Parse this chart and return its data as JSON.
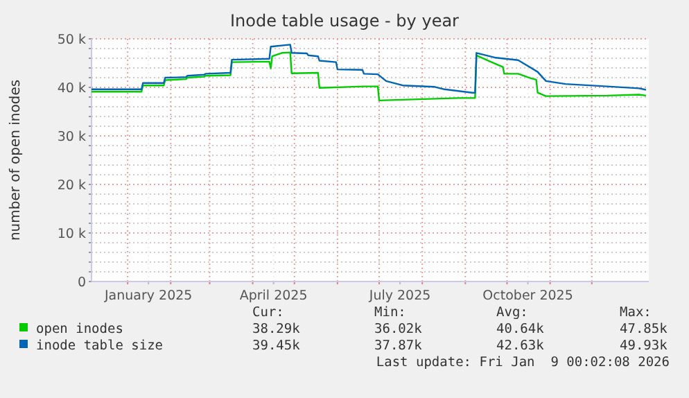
{
  "chart_data": {
    "type": "line",
    "title": "Inode table usage - by year",
    "ylabel": "number of open inodes",
    "xlim": [
      "2024-12-06",
      "2026-01-11"
    ],
    "xticks": [
      {
        "value": "2025-01-01",
        "label": null
      },
      {
        "value": "2025-01-16",
        "label": "January 2025"
      },
      {
        "value": "2025-02-01",
        "label": null
      },
      {
        "value": "2025-03-01",
        "label": null
      },
      {
        "value": "2025-04-01",
        "label": null
      },
      {
        "value": "2025-04-16",
        "label": "April 2025"
      },
      {
        "value": "2025-05-01",
        "label": null
      },
      {
        "value": "2025-06-01",
        "label": null
      },
      {
        "value": "2025-07-01",
        "label": null
      },
      {
        "value": "2025-07-16",
        "label": "July 2025"
      },
      {
        "value": "2025-08-01",
        "label": null
      },
      {
        "value": "2025-09-01",
        "label": null
      },
      {
        "value": "2025-10-01",
        "label": null
      },
      {
        "value": "2025-10-16",
        "label": "October 2025"
      },
      {
        "value": "2025-11-01",
        "label": null
      },
      {
        "value": "2025-12-01",
        "label": null
      }
    ],
    "ylim": [
      0,
      50000
    ],
    "yticks": [
      0,
      {
        "value": 2000,
        "label": null
      },
      {
        "value": 4000,
        "label": null
      },
      {
        "value": 6000,
        "label": null
      },
      {
        "value": 8000,
        "label": null
      },
      {
        "value": 10000,
        "label": "10 k"
      },
      {
        "value": 12000,
        "label": null
      },
      {
        "value": 14000,
        "label": null
      },
      {
        "value": 16000,
        "label": null
      },
      {
        "value": 18000,
        "label": null
      },
      {
        "value": 20000,
        "label": "20 k"
      },
      {
        "value": 22000,
        "label": null
      },
      {
        "value": 24000,
        "label": null
      },
      {
        "value": 26000,
        "label": null
      },
      {
        "value": 28000,
        "label": null
      },
      {
        "value": 30000,
        "label": "30 k"
      },
      {
        "value": 32000,
        "label": null
      },
      {
        "value": 34000,
        "label": null
      },
      {
        "value": 36000,
        "label": null
      },
      {
        "value": 38000,
        "label": null
      },
      {
        "value": 40000,
        "label": "40 k"
      },
      {
        "value": 42000,
        "label": null
      },
      {
        "value": 44000,
        "label": null
      },
      {
        "value": 46000,
        "label": null
      },
      {
        "value": 48000,
        "label": null
      },
      {
        "value": 50000,
        "label": "50 k"
      }
    ],
    "grid": true,
    "legend": "bottom",
    "line_style": "solid",
    "series": [
      {
        "name": "open inodes",
        "color": "#00cc00",
        "x": [
          "2024-12-06",
          "2025-01-11",
          "2025-01-12",
          "2025-01-27",
          "2025-01-28",
          "2025-02-12",
          "2025-02-13",
          "2025-02-25",
          "2025-02-26",
          "2025-03-16",
          "2025-03-17",
          "2025-04-13",
          "2025-04-14",
          "2025-04-15",
          "2025-04-22",
          "2025-04-28",
          "2025-04-29",
          "2025-05-18",
          "2025-05-19",
          "2025-06-20",
          "2025-06-30",
          "2025-07-01",
          "2025-08-27",
          "2025-09-08",
          "2025-09-09",
          "2025-09-19",
          "2025-09-28",
          "2025-09-29",
          "2025-10-09",
          "2025-10-19",
          "2025-10-22",
          "2025-10-23",
          "2025-10-29",
          "2025-12-12",
          "2026-01-04",
          "2026-01-09"
        ],
        "values": [
          39100,
          39100,
          40400,
          40400,
          41500,
          41700,
          42000,
          42200,
          42400,
          42500,
          45200,
          45300,
          43900,
          46400,
          47100,
          47200,
          42900,
          43000,
          39900,
          40200,
          40200,
          37300,
          37800,
          37800,
          46600,
          45300,
          44200,
          42800,
          42800,
          41800,
          41600,
          38900,
          38200,
          38300,
          38500,
          38300
        ]
      },
      {
        "name": "inode table size",
        "color": "#0066b3",
        "x": [
          "2024-12-06",
          "2025-01-11",
          "2025-01-12",
          "2025-01-27",
          "2025-01-28",
          "2025-02-12",
          "2025-02-13",
          "2025-02-25",
          "2025-02-26",
          "2025-03-16",
          "2025-03-17",
          "2025-04-13",
          "2025-04-14",
          "2025-04-28",
          "2025-04-29",
          "2025-05-10",
          "2025-05-11",
          "2025-05-18",
          "2025-05-19",
          "2025-05-31",
          "2025-06-01",
          "2025-06-19",
          "2025-06-20",
          "2025-06-30",
          "2025-07-06",
          "2025-07-18",
          "2025-08-10",
          "2025-08-17",
          "2025-09-06",
          "2025-09-08",
          "2025-09-09",
          "2025-09-23",
          "2025-10-09",
          "2025-10-23",
          "2025-10-29",
          "2025-11-12",
          "2025-12-12",
          "2026-01-04",
          "2026-01-09"
        ],
        "values": [
          39600,
          39600,
          40900,
          40900,
          42000,
          42100,
          42400,
          42600,
          42800,
          43000,
          45700,
          45900,
          48400,
          48800,
          47100,
          47000,
          46600,
          46400,
          45500,
          45200,
          43700,
          43600,
          42800,
          42700,
          41300,
          40400,
          40100,
          39600,
          38900,
          38900,
          47100,
          46100,
          45600,
          43200,
          41300,
          40700,
          40200,
          39800,
          39500
        ]
      }
    ],
    "annotations": [
      "Cur:",
      "Min:",
      "Avg:",
      "Max:",
      "38.29k",
      "36.02k",
      "40.64k",
      "47.85k",
      "39.45k",
      "37.87k",
      "42.63k",
      "49.93k",
      "Last update: Fri Jan  9 00:02:08 2026"
    ]
  }
}
